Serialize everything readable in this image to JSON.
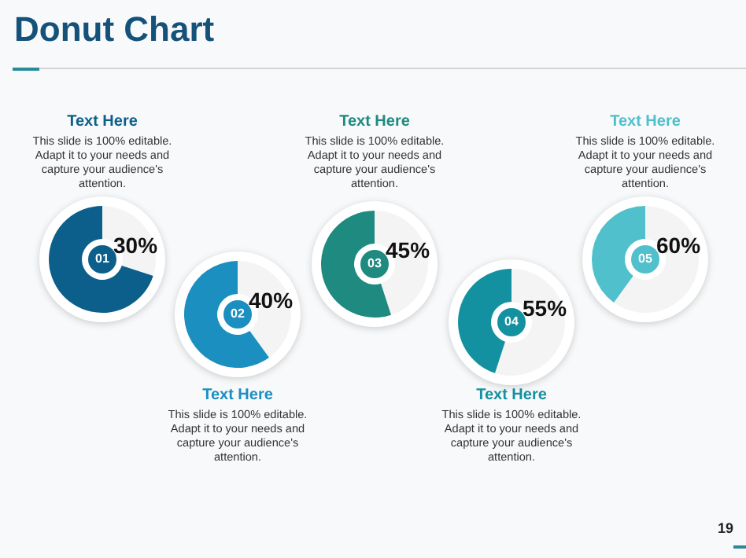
{
  "chart_data": [
    {
      "type": "other",
      "title": "Donut Chart",
      "annotations": [
        "19"
      ]
    },
    {
      "type": "donut",
      "title": "Text Here",
      "subtitle": "This slide is 100% editable. Adapt it to your needs and capture your audience's attention.",
      "categories": [
        null,
        null
      ],
      "values": [
        30,
        70
      ],
      "colors": [
        "#f4f4f4",
        "#0b5f8a"
      ],
      "annotations": [
        "01",
        "30%"
      ]
    },
    {
      "type": "donut",
      "title": "Text Here",
      "subtitle": "This slide is 100% editable. Adapt it to your needs and capture your audience's attention.",
      "categories": [
        null,
        null
      ],
      "values": [
        40,
        60
      ],
      "colors": [
        "#f4f4f4",
        "#1a8fc0"
      ],
      "annotations": [
        "02",
        "40%"
      ]
    },
    {
      "type": "donut",
      "title": "Text Here",
      "subtitle": "This slide is 100% editable. Adapt it to your needs and capture your audience's attention.",
      "categories": [
        null,
        null
      ],
      "values": [
        45,
        55
      ],
      "colors": [
        "#f4f4f4",
        "#1f8a80"
      ],
      "annotations": [
        "03",
        "45%"
      ]
    },
    {
      "type": "donut",
      "title": "Text Here",
      "subtitle": "This slide is 100% editable. Adapt it to your needs and capture your audience's attention.",
      "categories": [
        null,
        null
      ],
      "values": [
        55,
        45
      ],
      "colors": [
        "#f4f4f4",
        "#1391a0"
      ],
      "annotations": [
        "04",
        "55%"
      ]
    },
    {
      "type": "donut",
      "title": "Text Here",
      "subtitle": "This slide is 100% editable. Adapt it to your needs and capture your audience's attention.",
      "categories": [
        null,
        null
      ],
      "values": [
        60,
        40
      ],
      "colors": [
        "#f4f4f4",
        "#4fc0cc"
      ],
      "annotations": [
        "05",
        "60%"
      ]
    }
  ]
}
